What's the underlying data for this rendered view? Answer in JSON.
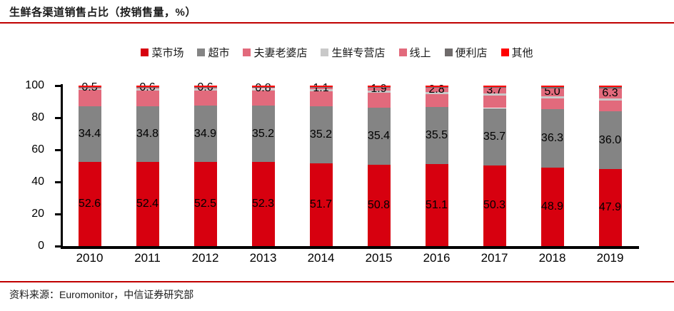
{
  "header": {
    "title": "生鲜各渠道销售占比（按销售量，%）"
  },
  "footer": {
    "source": "资料来源：Euromonitor，中信证券研究部"
  },
  "colors": {
    "rule_red": "#C00000",
    "axis_black": "#000000",
    "label_black": "#000000"
  },
  "chart_data": {
    "type": "bar",
    "stacked": true,
    "title": "生鲜各渠道销售占比（按销售量，%）",
    "xlabel": "",
    "ylabel": "",
    "ylim": [
      0,
      100
    ],
    "yticks": [
      0,
      20,
      40,
      60,
      80,
      100
    ],
    "grid": false,
    "legend_position": "top",
    "categories": [
      "2010",
      "2011",
      "2012",
      "2013",
      "2014",
      "2015",
      "2016",
      "2017",
      "2018",
      "2019"
    ],
    "series": [
      {
        "name": "菜市场",
        "color": "#D7000F",
        "labeled": true,
        "values": [
          52.6,
          52.4,
          52.5,
          52.3,
          51.7,
          50.8,
          51.1,
          50.3,
          48.9,
          47.9
        ]
      },
      {
        "name": "超市",
        "color": "#848484",
        "labeled": true,
        "values": [
          34.4,
          34.8,
          34.9,
          35.2,
          35.2,
          35.4,
          35.5,
          35.7,
          36.3,
          36.0
        ]
      },
      {
        "name": "夫妻老婆店",
        "color": "#E26A7C",
        "labeled": false,
        "values": [
          10.2,
          9.9,
          9.7,
          9.4,
          9.6,
          9.4,
          8.1,
          7.8,
          7.0,
          6.8
        ]
      },
      {
        "name": "生鲜专营店",
        "color": "#C9C9C9",
        "labeled": false,
        "values": [
          1.1,
          1.1,
          1.1,
          1.1,
          1.2,
          1.2,
          1.2,
          1.2,
          1.2,
          1.2
        ]
      },
      {
        "name": "线上",
        "color": "#E26A7C",
        "labeled": true,
        "values": [
          0.5,
          0.6,
          0.6,
          0.8,
          1.1,
          1.9,
          2.8,
          3.7,
          5.0,
          6.3
        ]
      },
      {
        "name": "便利店",
        "color": "#6F6B6B",
        "labeled": false,
        "values": [
          0.5,
          0.5,
          0.5,
          0.5,
          0.5,
          0.6,
          0.6,
          0.6,
          0.8,
          0.9
        ]
      },
      {
        "name": "其他",
        "color": "#FF0000",
        "labeled": false,
        "values": [
          0.7,
          0.7,
          0.7,
          0.7,
          0.7,
          0.7,
          0.7,
          0.7,
          0.8,
          0.9
        ]
      }
    ]
  }
}
